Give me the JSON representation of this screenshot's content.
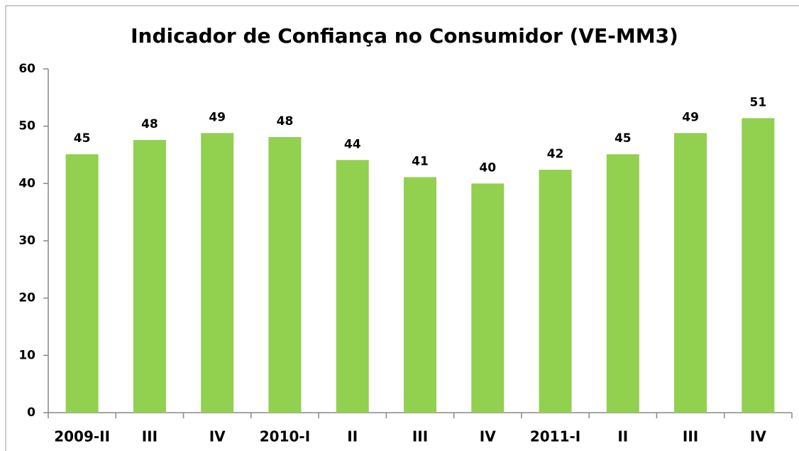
{
  "chart_data": {
    "type": "bar",
    "title": "Indicador de Confiança no Consumidor (VE-MM3)",
    "categories": [
      "2009-II",
      "III",
      "IV",
      "2010-I",
      "II",
      "III",
      "IV",
      "2011-I",
      "II",
      "III",
      "IV"
    ],
    "values": [
      45.1,
      47.6,
      48.8,
      48.1,
      44.1,
      41.1,
      40.0,
      42.4,
      45.1,
      48.8,
      51.4
    ],
    "value_labels": [
      "45",
      "48",
      "49",
      "48",
      "44",
      "41",
      "40",
      "42",
      "45",
      "49",
      "51"
    ],
    "color": "#92d050",
    "ylim": [
      0,
      60
    ],
    "yticks": [
      0,
      10,
      20,
      30,
      40,
      50,
      60
    ],
    "grid": false
  }
}
